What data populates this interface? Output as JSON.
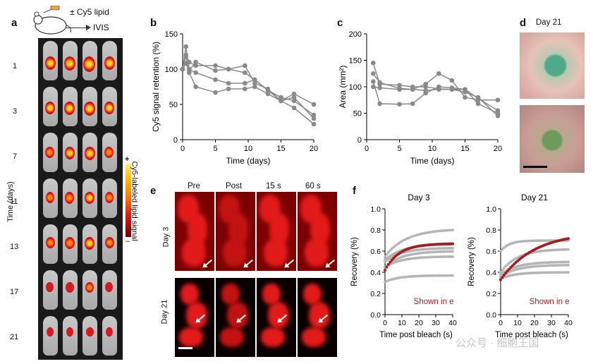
{
  "panel_a": {
    "label": "a",
    "tag": "± Cy5 lipid",
    "ivis": "IVIS",
    "y_title": "Time (days)",
    "days": [
      "1",
      "3",
      "7",
      "11",
      "13",
      "17",
      "21"
    ],
    "colorbar_label": "Cy5-labeled lipid signal",
    "colorbar_plus": "+",
    "colorbar_minus": "–"
  },
  "panel_b": {
    "label": "b",
    "chart_data": {
      "type": "line",
      "xlabel": "Time (days)",
      "ylabel": "Cy5 signal retention (%)",
      "xlim": [
        0,
        20
      ],
      "ylim": [
        0,
        150
      ],
      "xticks": [
        0,
        5,
        10,
        15,
        20
      ],
      "yticks": [
        0,
        50,
        100,
        150
      ],
      "series": [
        {
          "x": [
            0,
            0.5,
            1,
            2,
            5,
            7,
            9.5,
            11,
            13,
            15,
            17,
            20
          ],
          "values": [
            100,
            120,
            110,
            105,
            105,
            100,
            95,
            85,
            70,
            60,
            55,
            35
          ]
        },
        {
          "x": [
            0,
            0.5,
            1,
            2,
            5,
            7,
            9.5,
            11,
            13,
            15,
            17,
            20
          ],
          "values": [
            100,
            132,
            100,
            95,
            85,
            80,
            80,
            85,
            70,
            55,
            60,
            30
          ]
        },
        {
          "x": [
            0,
            0.5,
            1,
            2,
            5,
            7,
            9.5,
            11,
            13,
            15,
            17,
            20
          ],
          "values": [
            100,
            118,
            95,
            75,
            67,
            72,
            72,
            75,
            65,
            55,
            45,
            22
          ]
        },
        {
          "x": [
            0,
            0.5,
            1,
            2,
            5,
            7,
            9.5,
            11,
            13,
            15,
            17,
            20
          ],
          "values": [
            100,
            108,
            98,
            110,
            98,
            100,
            105,
            80,
            72,
            55,
            65,
            50
          ]
        }
      ]
    }
  },
  "panel_c": {
    "label": "c",
    "chart_data": {
      "type": "line",
      "xlabel": "Time (days)",
      "ylabel": "Area (mm²)",
      "xlim": [
        0,
        20
      ],
      "ylim": [
        0,
        200
      ],
      "xticks": [
        0,
        5,
        10,
        15,
        20
      ],
      "yticks": [
        0,
        50,
        100,
        150,
        200
      ],
      "series": [
        {
          "x": [
            1,
            2,
            5,
            7,
            9,
            11,
            13,
            15,
            17,
            20
          ],
          "values": [
            145,
            105,
            103,
            100,
            100,
            96,
            95,
            90,
            80,
            45
          ]
        },
        {
          "x": [
            1,
            2,
            5,
            7,
            9,
            11,
            13,
            15,
            17,
            20
          ],
          "values": [
            125,
            108,
            97,
            95,
            93,
            95,
            95,
            95,
            68,
            50
          ]
        },
        {
          "x": [
            1,
            2,
            5,
            7,
            9,
            11,
            13,
            15,
            17,
            20
          ],
          "values": [
            110,
            68,
            67,
            68,
            88,
            100,
            98,
            95,
            78,
            55
          ]
        },
        {
          "x": [
            1,
            2,
            5,
            7,
            9,
            11,
            13,
            15,
            17,
            20
          ],
          "values": [
            100,
            98,
            95,
            95,
            105,
            125,
            112,
            80,
            75,
            75
          ]
        }
      ]
    }
  },
  "panel_d": {
    "label": "d",
    "title": "Day 21"
  },
  "panel_e": {
    "label": "e",
    "columns": [
      "Pre",
      "Post",
      "15 s",
      "60 s"
    ],
    "rows": [
      "Day 3",
      "Day 21"
    ]
  },
  "panel_f": {
    "label": "f",
    "chart_data": [
      {
        "type": "scatter",
        "title": "Day 3",
        "xlabel": "Time post bleach (s)",
        "ylabel": "Recovery (%)",
        "xlim": [
          0,
          40
        ],
        "ylim": [
          0,
          1.0
        ],
        "xticks": [
          0,
          10,
          20,
          30,
          40
        ],
        "yticks": [
          0,
          0.2,
          0.4,
          0.6,
          0.8,
          1.0
        ],
        "annotation": "Shown in e",
        "highlight": {
          "plateau": 0.67,
          "start": 0.42,
          "rate": 0.12
        },
        "gray_series": [
          {
            "plateau": 0.81,
            "start": 0.55,
            "rate": 0.08
          },
          {
            "plateau": 0.68,
            "start": 0.52,
            "rate": 0.08
          },
          {
            "plateau": 0.63,
            "start": 0.5,
            "rate": 0.1
          },
          {
            "plateau": 0.6,
            "start": 0.45,
            "rate": 0.1
          },
          {
            "plateau": 0.55,
            "start": 0.45,
            "rate": 0.1
          },
          {
            "plateau": 0.37,
            "start": 0.31,
            "rate": 0.12
          }
        ]
      },
      {
        "type": "scatter",
        "title": "Day 21",
        "xlabel": "Time post bleach (s)",
        "ylabel": "Recovery (%)",
        "xlim": [
          0,
          40
        ],
        "ylim": [
          0,
          1.0
        ],
        "xticks": [
          0,
          10,
          20,
          30,
          40
        ],
        "yticks": [
          0,
          0.2,
          0.4,
          0.6,
          0.8,
          1.0
        ],
        "annotation": "Shown in e",
        "highlight": {
          "plateau": 0.78,
          "start": 0.33,
          "rate": 0.05
        },
        "gray_series": [
          {
            "plateau": 0.7,
            "start": 0.6,
            "rate": 0.2
          },
          {
            "plateau": 0.62,
            "start": 0.4,
            "rate": 0.1
          },
          {
            "plateau": 0.5,
            "start": 0.38,
            "rate": 0.1
          },
          {
            "plateau": 0.47,
            "start": 0.36,
            "rate": 0.1
          },
          {
            "plateau": 0.4,
            "start": 0.34,
            "rate": 0.12
          }
        ]
      }
    ]
  },
  "watermark": "公众号 · 细胞王国"
}
